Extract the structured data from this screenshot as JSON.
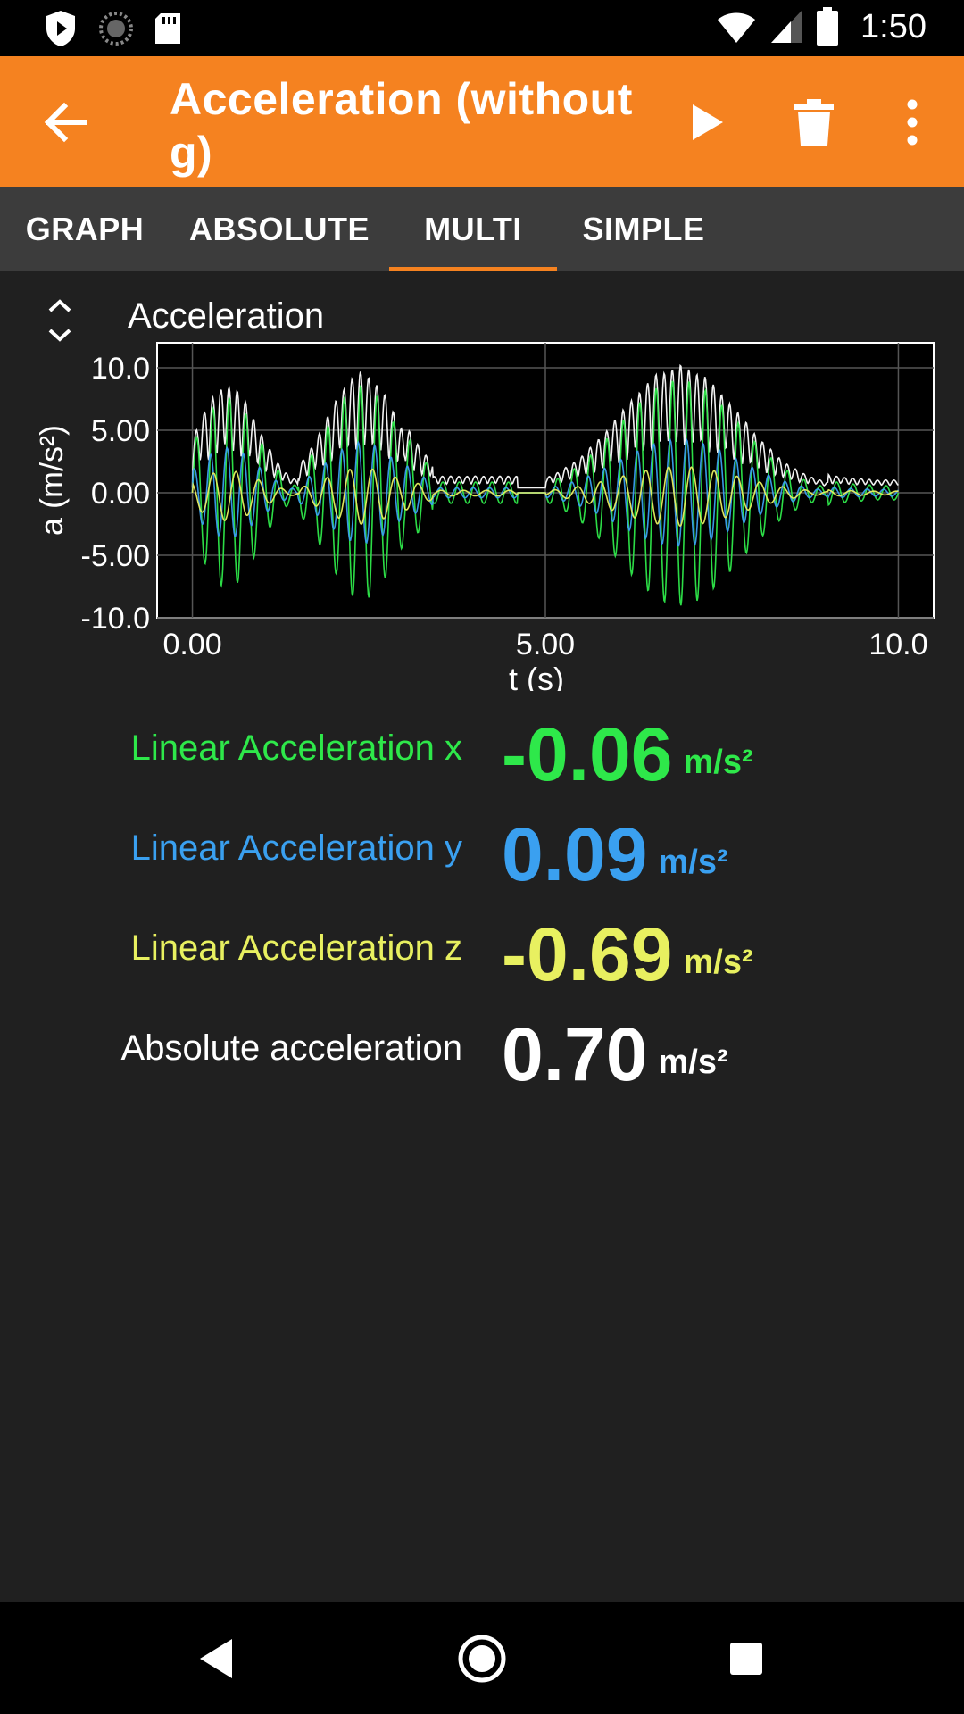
{
  "status": {
    "time": "1:50"
  },
  "toolbar": {
    "title": "Acceleration (without g)"
  },
  "tabs": [
    {
      "label": "GRAPH",
      "active": false
    },
    {
      "label": "ABSOLUTE",
      "active": false
    },
    {
      "label": "MULTI",
      "active": true
    },
    {
      "label": "SIMPLE",
      "active": false
    }
  ],
  "colors": {
    "accent": "#f58220",
    "x": "#2ee84a",
    "y": "#3aa0f0",
    "z": "#e8f060",
    "abs": "#ffffff"
  },
  "chart_data": {
    "type": "line",
    "title": "Acceleration",
    "xlabel": "t (s)",
    "ylabel": "a (m/s²)",
    "xlim": [
      -0.5,
      10.5
    ],
    "ylim": [
      -10.0,
      12.0
    ],
    "xticks": [
      "0.00",
      "5.00",
      "10.0"
    ],
    "yticks": [
      "10.0",
      "5.00",
      "0.00",
      "-5.00",
      "-10.0"
    ],
    "grid": true,
    "series": [
      {
        "name": "Linear Acceleration x",
        "color": "#2ee84a"
      },
      {
        "name": "Linear Acceleration y",
        "color": "#3aa0f0"
      },
      {
        "name": "Linear Acceleration z",
        "color": "#e8f060"
      },
      {
        "name": "Absolute acceleration",
        "color": "#ffffff"
      }
    ]
  },
  "readings": [
    {
      "label": "Linear Acceleration x",
      "value": "-0.06",
      "unit": "m/s²",
      "color": "#2ee84a"
    },
    {
      "label": "Linear Acceleration y",
      "value": "0.09",
      "unit": "m/s²",
      "color": "#3aa0f0"
    },
    {
      "label": "Linear Acceleration z",
      "value": "-0.69",
      "unit": "m/s²",
      "color": "#e8f060"
    },
    {
      "label": "Absolute acceleration",
      "value": "0.70",
      "unit": "m/s²",
      "color": "#ffffff"
    }
  ]
}
